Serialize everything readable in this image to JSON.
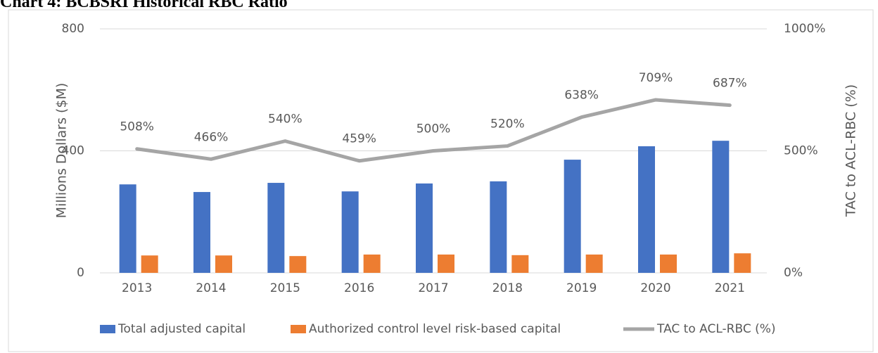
{
  "chart_data": {
    "type": "bar",
    "title": "Chart 4: BCBSRI Historical RBC Ratio",
    "categories": [
      "2013",
      "2014",
      "2015",
      "2016",
      "2017",
      "2018",
      "2019",
      "2020",
      "2021"
    ],
    "series": [
      {
        "name": "Total adjusted capital",
        "color": "#4472c4",
        "type": "bar",
        "values": [
          290,
          265,
          295,
          267,
          293,
          300,
          371,
          415,
          433
        ]
      },
      {
        "name": "Authorized control level risk-based capital",
        "color": "#ed7d31",
        "type": "bar",
        "values": [
          57,
          57,
          55,
          60,
          60,
          58,
          60,
          60,
          64
        ]
      },
      {
        "name": "TAC to ACL-RBC (%)",
        "color": "#a5a5a5",
        "type": "line",
        "axis": "y2",
        "values": [
          508,
          466,
          540,
          459,
          500,
          520,
          638,
          709,
          687
        ],
        "value_labels": [
          "508%",
          "466%",
          "540%",
          "459%",
          "500%",
          "520%",
          "638%",
          "709%",
          "687%"
        ]
      }
    ],
    "ylabel": "Millions Dollars ($M)",
    "y2label": "TAC to ACL-RBC (%)",
    "ylim": [
      0,
      800
    ],
    "yticks": [
      0,
      400,
      800
    ],
    "y2lim": [
      0,
      1000
    ],
    "y2ticks": [
      {
        "value": 0,
        "label": "0%"
      },
      {
        "value": 500,
        "label": "500%"
      },
      {
        "value": 1000,
        "label": "1000%"
      }
    ],
    "grid": true,
    "legend": "bottom"
  }
}
